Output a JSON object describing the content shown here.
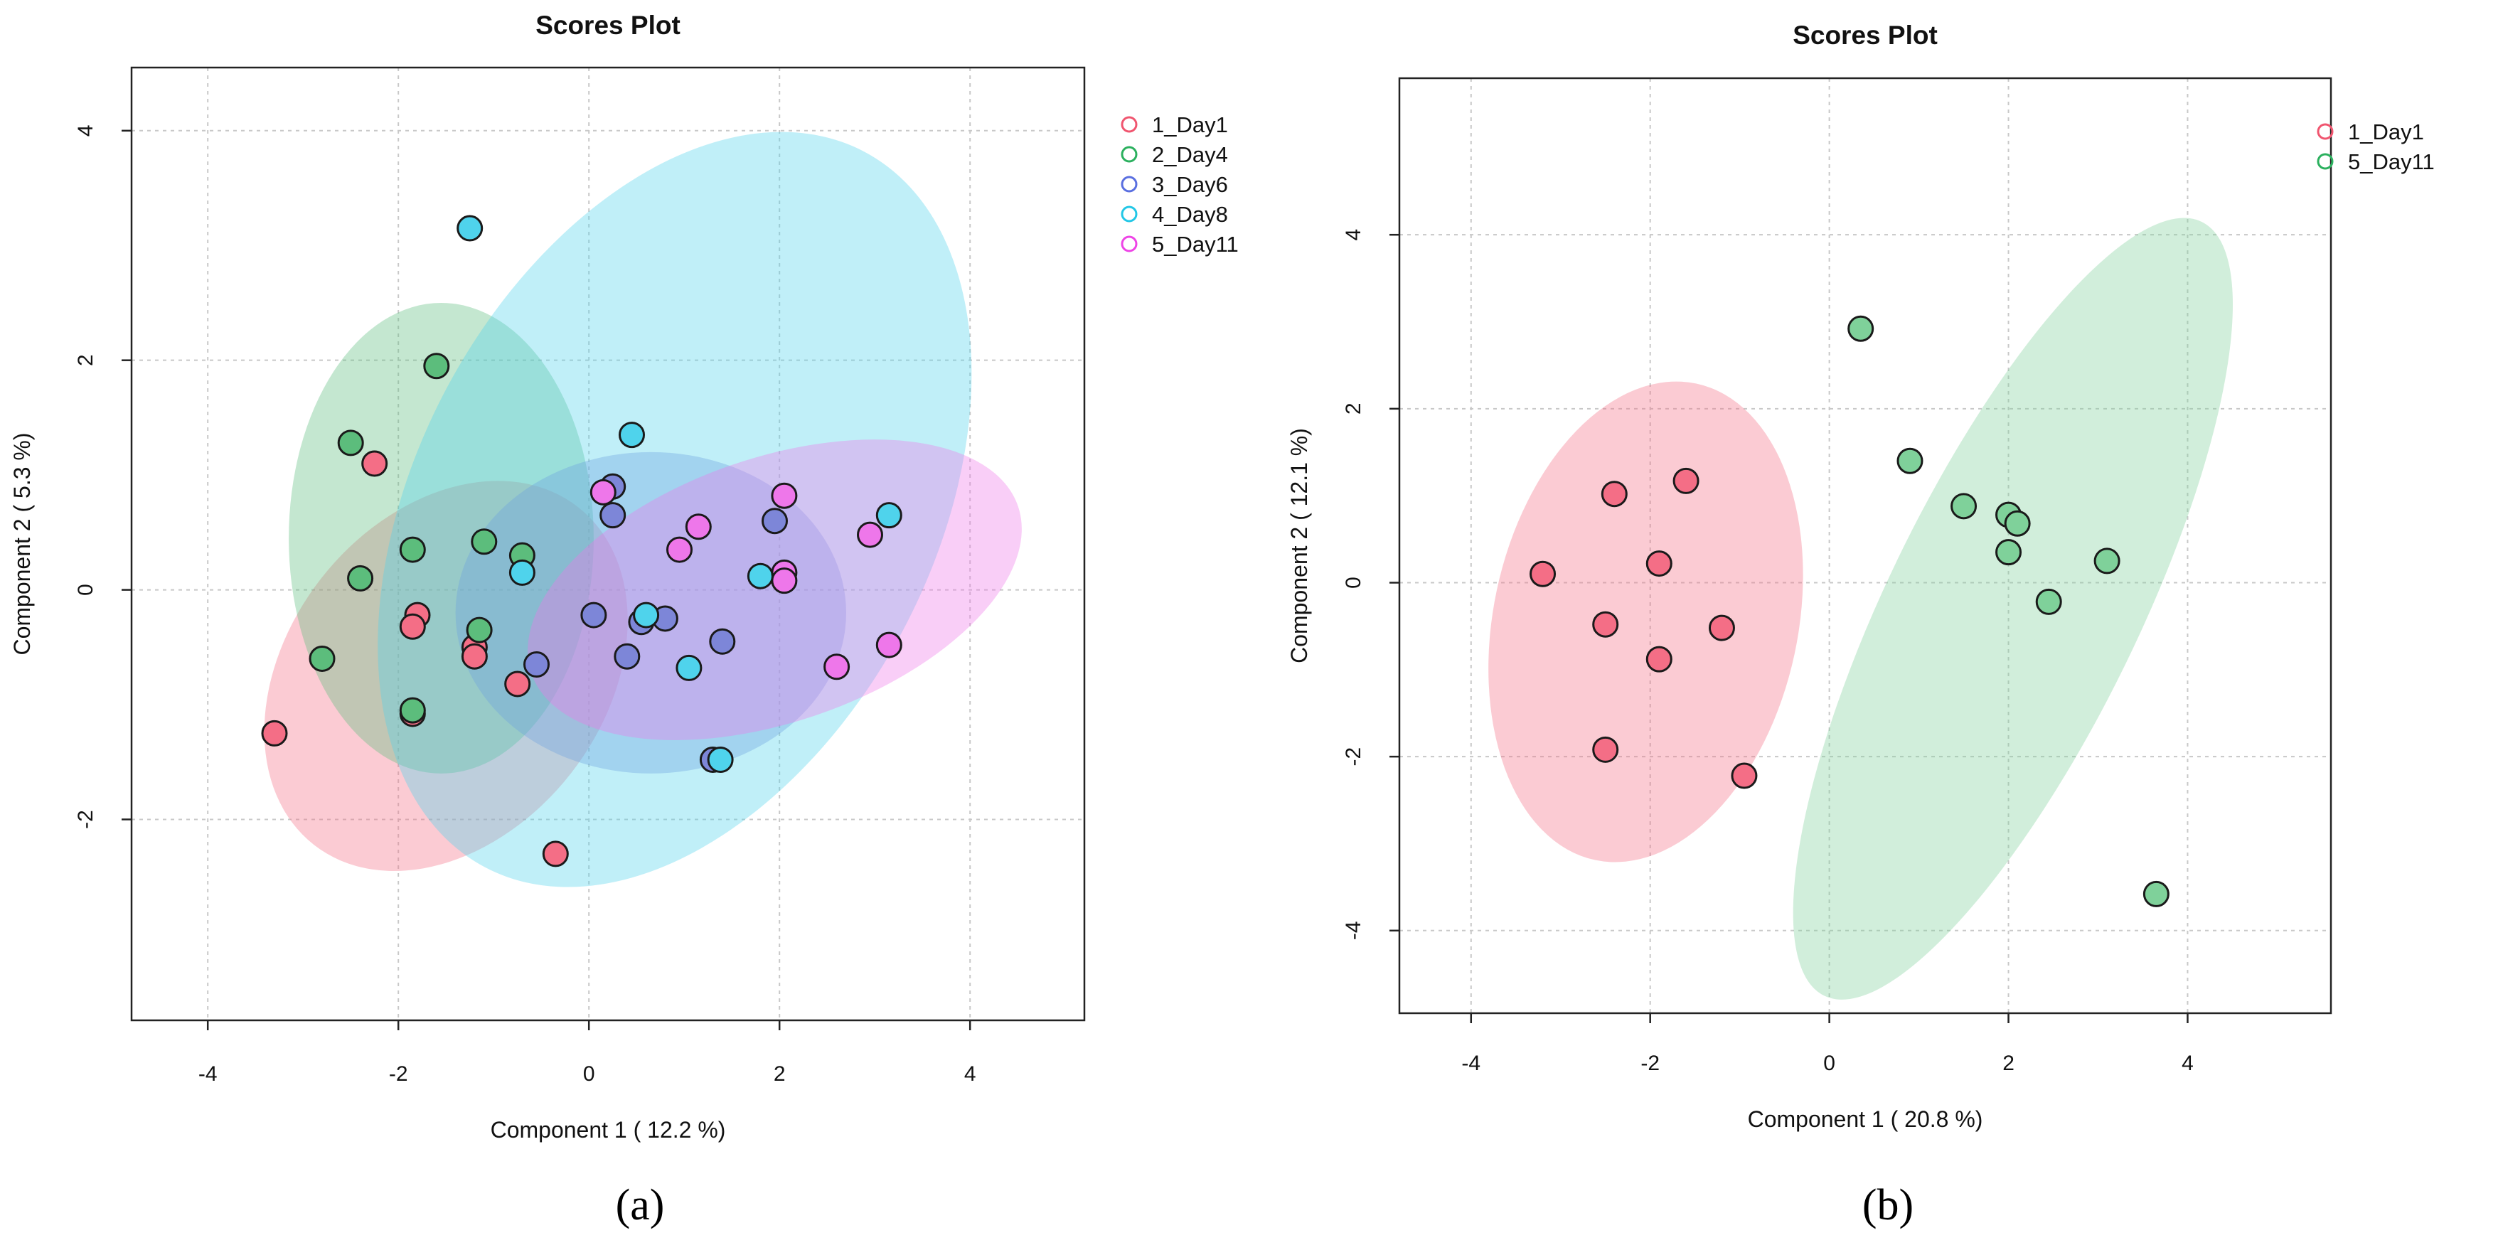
{
  "chart_data": [
    {
      "type": "scatter",
      "panel_label": "(a)",
      "panel_letter": "a",
      "title": "Scores Plot",
      "xlabel": "Component 1 ( 12.2 %)",
      "ylabel": "Component 2 ( 5.3 %)",
      "xlim": [
        -4.8,
        5.2
      ],
      "ylim": [
        -3.75,
        4.55
      ],
      "xticks": [
        -4,
        -2,
        0,
        2,
        4
      ],
      "yticks": [
        -2,
        0,
        2,
        4
      ],
      "grid": true,
      "legend_position": "top-right, outside plot",
      "series": [
        {
          "name": "1_Day1",
          "color": "#f0556f",
          "fill": "#f46e86",
          "ellipse": {
            "cx": -1.5,
            "cy": -0.75,
            "rx": 2.25,
            "ry": 1.38,
            "angle_deg": -52
          },
          "points": [
            [
              -2.25,
              1.1
            ],
            [
              -1.8,
              -0.22
            ],
            [
              -1.85,
              -0.32
            ],
            [
              -1.2,
              -0.5
            ],
            [
              -1.2,
              -0.58
            ],
            [
              -0.75,
              -0.82
            ],
            [
              -3.3,
              -1.25
            ],
            [
              -1.85,
              -1.08
            ],
            [
              -0.35,
              -2.3
            ]
          ]
        },
        {
          "name": "2_Day4",
          "color": "#2bb05e",
          "fill": "#5cbd7c",
          "ellipse": {
            "cx": -1.55,
            "cy": 0.45,
            "rx": 1.6,
            "ry": 2.05,
            "angle_deg": 0
          },
          "points": [
            [
              -1.6,
              1.95
            ],
            [
              -2.5,
              1.28
            ],
            [
              -1.85,
              0.35
            ],
            [
              -1.1,
              0.42
            ],
            [
              -0.7,
              0.3
            ],
            [
              -2.4,
              0.1
            ],
            [
              -1.15,
              -0.35
            ],
            [
              -2.8,
              -0.6
            ],
            [
              -1.85,
              -1.05
            ]
          ]
        },
        {
          "name": "3_Day6",
          "color": "#5a6fe0",
          "fill": "#7d86d8",
          "ellipse": {
            "cx": 0.65,
            "cy": -0.2,
            "rx": 2.05,
            "ry": 1.4,
            "angle_deg": 0
          },
          "points": [
            [
              0.25,
              0.9
            ],
            [
              0.25,
              0.65
            ],
            [
              1.95,
              0.6
            ],
            [
              0.05,
              -0.22
            ],
            [
              0.55,
              -0.28
            ],
            [
              0.8,
              -0.25
            ],
            [
              1.4,
              -0.45
            ],
            [
              -0.55,
              -0.65
            ],
            [
              0.4,
              -0.58
            ],
            [
              1.3,
              -1.48
            ]
          ]
        },
        {
          "name": "4_Day8",
          "color": "#22c7e6",
          "fill": "#4fd3ec",
          "ellipse": {
            "cx": 0.9,
            "cy": 0.7,
            "rx": 4.25,
            "ry": 2.25,
            "angle_deg": -62
          },
          "points": [
            [
              -1.25,
              3.15
            ],
            [
              0.45,
              1.35
            ],
            [
              3.15,
              0.65
            ],
            [
              1.8,
              0.12
            ],
            [
              -0.7,
              0.15
            ],
            [
              0.6,
              -0.22
            ],
            [
              1.05,
              -0.68
            ],
            [
              1.38,
              -1.48
            ]
          ]
        },
        {
          "name": "5_Day11",
          "color": "#ee44e6",
          "fill": "#ee77ea",
          "ellipse": {
            "cx": 1.95,
            "cy": 0.0,
            "rx": 2.7,
            "ry": 1.15,
            "angle_deg": -19
          },
          "points": [
            [
              0.15,
              0.85
            ],
            [
              2.05,
              0.82
            ],
            [
              1.15,
              0.55
            ],
            [
              0.95,
              0.35
            ],
            [
              2.95,
              0.48
            ],
            [
              2.05,
              0.15
            ],
            [
              2.05,
              0.08
            ],
            [
              3.15,
              -0.48
            ],
            [
              2.6,
              -0.67
            ]
          ]
        }
      ]
    },
    {
      "type": "scatter",
      "panel_label": "(b)",
      "panel_letter": "b",
      "title": "Scores Plot",
      "xlabel": "Component 1 ( 20.8 %)",
      "ylabel": "Component 2 ( 12.1 %)",
      "xlim": [
        -4.8,
        5.6
      ],
      "ylim": [
        -4.95,
        5.8
      ],
      "xticks": [
        -4,
        -2,
        0,
        2,
        4
      ],
      "yticks": [
        -4,
        -2,
        0,
        2,
        4
      ],
      "grid": true,
      "legend_position": "top-right, outside plot",
      "series": [
        {
          "name": "1_Day1",
          "color": "#f0556f",
          "fill": "#f46e86",
          "ellipse": {
            "cx": -2.05,
            "cy": -0.45,
            "rx": 1.7,
            "ry": 2.8,
            "angle_deg": 12
          },
          "points": [
            [
              -2.4,
              1.02
            ],
            [
              -1.6,
              1.17
            ],
            [
              -3.2,
              0.1
            ],
            [
              -1.9,
              0.22
            ],
            [
              -2.5,
              -0.48
            ],
            [
              -1.9,
              -0.88
            ],
            [
              -1.2,
              -0.52
            ],
            [
              -2.5,
              -1.92
            ],
            [
              -0.95,
              -2.22
            ]
          ]
        },
        {
          "name": "5_Day11",
          "color": "#2bb05e",
          "fill": "#7fd19a",
          "ellipse": {
            "cx": 2.05,
            "cy": -0.3,
            "rx": 1.4,
            "ry": 4.95,
            "angle_deg": 26
          },
          "points": [
            [
              0.35,
              2.92
            ],
            [
              0.9,
              1.4
            ],
            [
              1.5,
              0.88
            ],
            [
              2.0,
              0.78
            ],
            [
              2.1,
              0.68
            ],
            [
              2.0,
              0.35
            ],
            [
              3.1,
              0.25
            ],
            [
              2.45,
              -0.22
            ],
            [
              3.65,
              -3.58
            ]
          ]
        }
      ]
    }
  ]
}
